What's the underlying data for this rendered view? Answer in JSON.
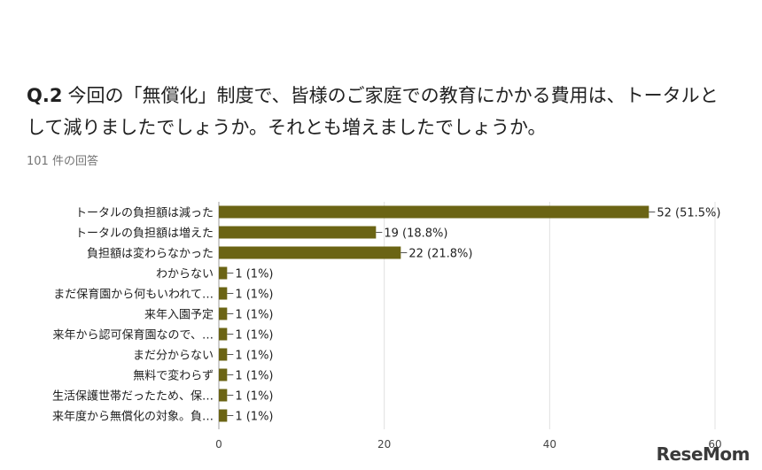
{
  "question": {
    "number": "Q.2",
    "text": "今回の「無償化」制度で、皆様のご家庭での教育にかかる費用は、トータルとして減りましたでしょうか。それとも増えましたでしょうか。"
  },
  "response_count": "101 件の回答",
  "watermark": "ReseMom",
  "colors": {
    "bar": "#6b6414",
    "grid": "#e0e0e0",
    "text": "#212121"
  },
  "chart_data": {
    "type": "bar",
    "orientation": "horizontal",
    "categories": [
      "トータルの負担額は減った",
      "トータルの負担額は増えた",
      "負担額は変わらなかった",
      "わからない",
      "まだ保育園から何もいわれて…",
      "来年入園予定",
      "来年から認可保育園なので、…",
      "まだ分からない",
      "無料で変わらず",
      "生活保護世帯だったため、保…",
      "来年度から無償化の対象。負…"
    ],
    "values": [
      52,
      19,
      22,
      1,
      1,
      1,
      1,
      1,
      1,
      1,
      1
    ],
    "data_labels": [
      "52 (51.5%)",
      "19 (18.8%)",
      "22 (21.8%)",
      "1 (1%)",
      "1 (1%)",
      "1 (1%)",
      "1 (1%)",
      "1 (1%)",
      "1 (1%)",
      "1 (1%)",
      "1 (1%)"
    ],
    "xlim": [
      0,
      60
    ],
    "xticks": [
      0,
      20,
      40,
      60
    ],
    "grid": true
  }
}
